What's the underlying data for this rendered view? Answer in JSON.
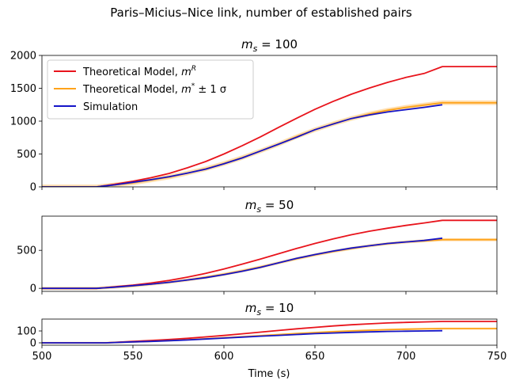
{
  "suptitle": "Paris–Micius–Nice link, number of established pairs",
  "xlabel": "Time (s)",
  "legend": {
    "placement": "upper-left",
    "entries": [
      {
        "label": "Theoretical Model, m",
        "sup": "R",
        "suffix": "",
        "color": "#e8141c"
      },
      {
        "label": "Theoretical Model, m",
        "sup": "*",
        "suffix": " ± 1 σ",
        "color": "#ffa31a"
      },
      {
        "label": "Simulation",
        "sup": "",
        "suffix": "",
        "color": "#1414c8"
      }
    ]
  },
  "colors": {
    "model_R": "#e8141c",
    "model_star": "#ffa31a",
    "simulation": "#1414c8",
    "band": "#ffd9a3"
  },
  "chart_data": [
    {
      "type": "line",
      "title": "m_s = 100",
      "title_parts": {
        "var": "m",
        "sub": "s",
        "rest": " = 100"
      },
      "xlim": [
        500,
        750
      ],
      "ylim": [
        0,
        2000
      ],
      "xticks": [
        500,
        550,
        600,
        650,
        700,
        750
      ],
      "yticks": [
        0,
        500,
        1000,
        1500,
        2000
      ],
      "series": [
        {
          "name": "Theoretical Model, m^R",
          "color": "#e8141c",
          "x": [
            500,
            530,
            540,
            550,
            560,
            570,
            580,
            590,
            600,
            610,
            620,
            630,
            640,
            650,
            660,
            670,
            680,
            690,
            700,
            710,
            720,
            750
          ],
          "y": [
            0,
            0,
            40,
            85,
            140,
            205,
            290,
            385,
            500,
            625,
            760,
            905,
            1045,
            1180,
            1300,
            1410,
            1505,
            1590,
            1665,
            1725,
            1830,
            1830
          ]
        },
        {
          "name": "Theoretical Model, m* ± 1 σ",
          "color": "#ffa31a",
          "band": 35,
          "x": [
            500,
            530,
            540,
            550,
            560,
            570,
            580,
            590,
            600,
            610,
            620,
            630,
            640,
            650,
            660,
            670,
            680,
            690,
            700,
            710,
            720,
            750
          ],
          "y": [
            0,
            0,
            30,
            60,
            105,
            150,
            210,
            275,
            355,
            445,
            545,
            650,
            765,
            870,
            960,
            1040,
            1110,
            1165,
            1210,
            1245,
            1280,
            1280
          ]
        },
        {
          "name": "Simulation",
          "color": "#1414c8",
          "x": [
            500,
            530,
            540,
            550,
            560,
            570,
            580,
            590,
            600,
            610,
            620,
            630,
            640,
            650,
            660,
            670,
            680,
            690,
            700,
            710,
            720
          ],
          "y": [
            0,
            0,
            30,
            70,
            110,
            155,
            210,
            270,
            350,
            440,
            545,
            650,
            755,
            870,
            955,
            1040,
            1095,
            1140,
            1175,
            1210,
            1250
          ]
        }
      ]
    },
    {
      "type": "line",
      "title": "m_s = 50",
      "title_parts": {
        "var": "m",
        "sub": "s",
        "rest": " = 50"
      },
      "xlim": [
        500,
        750
      ],
      "ylim": [
        -40,
        950
      ],
      "xticks": [
        500,
        550,
        600,
        650,
        700,
        750
      ],
      "yticks": [
        0,
        500
      ],
      "series": [
        {
          "name": "Theoretical Model, m^R",
          "color": "#e8141c",
          "x": [
            500,
            530,
            540,
            550,
            560,
            570,
            580,
            590,
            600,
            610,
            620,
            630,
            640,
            650,
            660,
            670,
            680,
            690,
            700,
            710,
            720,
            750
          ],
          "y": [
            0,
            0,
            20,
            42,
            70,
            105,
            148,
            197,
            255,
            318,
            385,
            455,
            525,
            590,
            650,
            705,
            752,
            792,
            828,
            860,
            895,
            895
          ]
        },
        {
          "name": "Theoretical Model, m* ± 1 σ",
          "color": "#ffa31a",
          "band": 20,
          "x": [
            500,
            530,
            540,
            550,
            560,
            570,
            580,
            590,
            600,
            610,
            620,
            630,
            640,
            650,
            660,
            670,
            680,
            690,
            700,
            710,
            720,
            750
          ],
          "y": [
            0,
            0,
            15,
            32,
            55,
            80,
            110,
            145,
            185,
            230,
            280,
            335,
            390,
            440,
            485,
            525,
            560,
            588,
            610,
            625,
            640,
            640
          ]
        },
        {
          "name": "Simulation",
          "color": "#1414c8",
          "x": [
            500,
            530,
            540,
            550,
            560,
            570,
            580,
            590,
            600,
            610,
            620,
            630,
            640,
            650,
            660,
            670,
            680,
            690,
            700,
            710,
            720
          ],
          "y": [
            0,
            0,
            15,
            35,
            55,
            80,
            110,
            140,
            180,
            225,
            275,
            335,
            395,
            445,
            490,
            530,
            560,
            590,
            610,
            630,
            660
          ]
        }
      ]
    },
    {
      "type": "line",
      "title": "m_s = 10",
      "title_parts": {
        "var": "m",
        "sub": "s",
        "rest": " = 10"
      },
      "xlim": [
        500,
        750
      ],
      "ylim": [
        -20,
        200
      ],
      "xticks": [
        500,
        550,
        600,
        650,
        700,
        750
      ],
      "yticks": [
        0,
        100
      ],
      "series": [
        {
          "name": "Theoretical Model, m^R",
          "color": "#e8141c",
          "x": [
            500,
            535,
            550,
            560,
            570,
            580,
            590,
            600,
            610,
            620,
            630,
            640,
            650,
            660,
            670,
            680,
            690,
            700,
            710,
            720,
            750
          ],
          "y": [
            0,
            0,
            12,
            20,
            28,
            38,
            50,
            62,
            76,
            90,
            104,
            118,
            130,
            142,
            152,
            160,
            167,
            172,
            176,
            180,
            180
          ]
        },
        {
          "name": "Theoretical Model, m* ± 1 σ",
          "color": "#ffa31a",
          "band": 8,
          "x": [
            500,
            535,
            550,
            560,
            570,
            580,
            590,
            600,
            610,
            620,
            630,
            640,
            650,
            660,
            670,
            680,
            690,
            700,
            710,
            720,
            750
          ],
          "y": [
            0,
            0,
            8,
            13,
            19,
            26,
            34,
            42,
            51,
            60,
            69,
            78,
            86,
            94,
            100,
            106,
            111,
            115,
            118,
            120,
            120
          ]
        },
        {
          "name": "Simulation",
          "color": "#1414c8",
          "x": [
            500,
            535,
            550,
            560,
            570,
            580,
            590,
            600,
            610,
            620,
            630,
            640,
            650,
            660,
            670,
            680,
            690,
            700,
            710,
            720
          ],
          "y": [
            0,
            0,
            8,
            12,
            18,
            24,
            32,
            40,
            48,
            56,
            63,
            70,
            77,
            83,
            88,
            92,
            96,
            98,
            100,
            102
          ]
        }
      ]
    }
  ]
}
